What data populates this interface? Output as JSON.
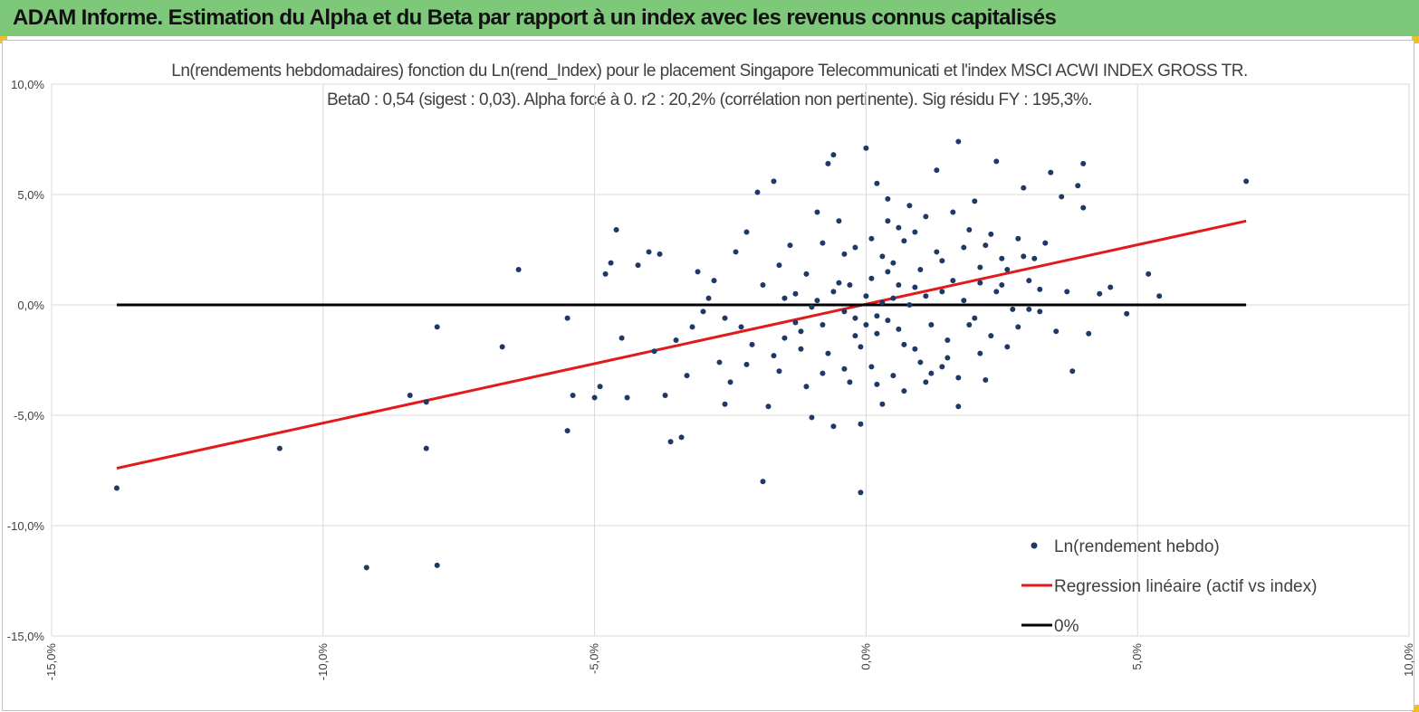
{
  "header": {
    "title": "ADAM Informe. Estimation du Alpha et du Beta par rapport à un index avec les revenus connus capitalisés"
  },
  "chart_data": {
    "type": "scatter",
    "title_line1": "Ln(rendements hebdomadaires) fonction du Ln(rend_Index)  pour le placement Singapore Telecommunicati  et l'index MSCI ACWI INDEX GROSS TR.",
    "title_line2": "Beta0 : 0,54 (sigest : 0,03).  Alpha forcé à 0. r2 : 20,2% (corrélation non pertinente). Sig résidu FY : 195,3%.",
    "xlim": [
      -15,
      10
    ],
    "ylim": [
      -15,
      10
    ],
    "x_ticks": [
      -15,
      -10,
      -5,
      0,
      5,
      10
    ],
    "y_ticks": [
      10,
      5,
      0,
      -5,
      -10,
      -15
    ],
    "x_tick_labels": [
      "-15,0%",
      "-10,0%",
      "-5,0%",
      "0,0%",
      "5,0%",
      "10,0%"
    ],
    "y_tick_labels": [
      "10,0%",
      "5,0%",
      "0,0%",
      "-5,0%",
      "-10,0%",
      "-15,0%"
    ],
    "grid": "vertical-and-horizontal",
    "legend_position": "bottom-right",
    "series": [
      {
        "name": "Ln(rendement hebdo)",
        "kind": "scatter",
        "color": "#1f3864",
        "points": [
          [
            -13.8,
            -8.3
          ],
          [
            -10.8,
            -6.5
          ],
          [
            -9.2,
            -11.9
          ],
          [
            -8.4,
            -4.1
          ],
          [
            -8.1,
            -4.4
          ],
          [
            -8.1,
            -6.5
          ],
          [
            -7.9,
            -11.8
          ],
          [
            -7.9,
            -1.0
          ],
          [
            -6.7,
            -1.9
          ],
          [
            -6.4,
            1.6
          ],
          [
            -5.5,
            -5.7
          ],
          [
            -5.5,
            -0.6
          ],
          [
            -5.4,
            -4.1
          ],
          [
            -5.0,
            -4.2
          ],
          [
            -4.9,
            -3.7
          ],
          [
            -4.8,
            1.4
          ],
          [
            -4.7,
            1.9
          ],
          [
            -4.6,
            3.4
          ],
          [
            -4.5,
            -1.5
          ],
          [
            -4.4,
            -4.2
          ],
          [
            -4.2,
            1.8
          ],
          [
            -4.0,
            2.4
          ],
          [
            -3.9,
            -2.1
          ],
          [
            -3.8,
            2.3
          ],
          [
            -3.7,
            -4.1
          ],
          [
            -3.6,
            -6.2
          ],
          [
            -3.4,
            -6.0
          ],
          [
            -3.3,
            -3.2
          ],
          [
            -3.1,
            1.5
          ],
          [
            -3.0,
            -0.3
          ],
          [
            -2.8,
            1.1
          ],
          [
            -2.7,
            -2.6
          ],
          [
            -2.6,
            -4.5
          ],
          [
            -2.4,
            2.4
          ],
          [
            -2.2,
            3.3
          ],
          [
            -2.1,
            -1.8
          ],
          [
            -2.0,
            5.1
          ],
          [
            -1.9,
            -8.0
          ],
          [
            -1.8,
            -4.6
          ],
          [
            -1.7,
            5.6
          ],
          [
            -1.6,
            -3.0
          ],
          [
            -1.5,
            -1.5
          ],
          [
            -1.4,
            2.7
          ],
          [
            -1.3,
            0.5
          ],
          [
            -1.2,
            -2.0
          ],
          [
            -1.1,
            1.4
          ],
          [
            -1.0,
            -5.1
          ],
          [
            -0.9,
            4.2
          ],
          [
            -0.8,
            -3.1
          ],
          [
            -0.7,
            6.4
          ],
          [
            -0.6,
            -5.5
          ],
          [
            -0.6,
            6.8
          ],
          [
            -0.5,
            3.8
          ],
          [
            -0.4,
            2.3
          ],
          [
            -0.3,
            -3.5
          ],
          [
            -0.2,
            -1.4
          ],
          [
            -0.1,
            -5.4
          ],
          [
            -0.1,
            -8.5
          ],
          [
            0.0,
            7.1
          ],
          [
            0.1,
            3.0
          ],
          [
            0.1,
            -2.8
          ],
          [
            0.2,
            -0.5
          ],
          [
            0.2,
            5.5
          ],
          [
            0.3,
            2.2
          ],
          [
            0.3,
            -4.5
          ],
          [
            0.4,
            4.8
          ],
          [
            0.4,
            1.5
          ],
          [
            0.5,
            -3.2
          ],
          [
            0.6,
            3.5
          ],
          [
            0.7,
            -1.8
          ],
          [
            0.8,
            4.5
          ],
          [
            0.9,
            0.8
          ],
          [
            1.0,
            -2.6
          ],
          [
            1.1,
            4.0
          ],
          [
            1.2,
            -3.1
          ],
          [
            1.3,
            6.1
          ],
          [
            1.4,
            2.0
          ],
          [
            1.5,
            -1.6
          ],
          [
            1.6,
            4.2
          ],
          [
            1.7,
            7.4
          ],
          [
            1.7,
            -4.6
          ],
          [
            1.8,
            2.6
          ],
          [
            1.9,
            -0.9
          ],
          [
            2.0,
            4.7
          ],
          [
            2.1,
            1.7
          ],
          [
            2.2,
            -3.4
          ],
          [
            2.3,
            3.2
          ],
          [
            2.4,
            6.5
          ],
          [
            2.5,
            0.9
          ],
          [
            2.6,
            -1.9
          ],
          [
            2.8,
            3.0
          ],
          [
            2.9,
            5.3
          ],
          [
            3.0,
            -0.2
          ],
          [
            3.1,
            2.1
          ],
          [
            3.2,
            0.7
          ],
          [
            3.4,
            6.0
          ],
          [
            3.5,
            -1.2
          ],
          [
            3.6,
            4.9
          ],
          [
            3.7,
            0.6
          ],
          [
            3.8,
            -3.0
          ],
          [
            3.9,
            5.4
          ],
          [
            4.0,
            6.4
          ],
          [
            4.0,
            4.4
          ],
          [
            4.1,
            -1.3
          ],
          [
            4.3,
            0.5
          ],
          [
            4.5,
            0.8
          ],
          [
            4.8,
            -0.4
          ],
          [
            5.2,
            1.4
          ],
          [
            5.4,
            0.4
          ],
          [
            7.0,
            5.6
          ],
          [
            -2.9,
            0.3
          ],
          [
            -2.3,
            -1.0
          ],
          [
            -1.9,
            0.9
          ],
          [
            -1.6,
            1.8
          ],
          [
            -1.3,
            -0.8
          ],
          [
            -1.1,
            -3.7
          ],
          [
            -0.9,
            0.2
          ],
          [
            -0.8,
            2.8
          ],
          [
            -0.7,
            -2.2
          ],
          [
            -0.5,
            1.0
          ],
          [
            -0.4,
            -0.3
          ],
          [
            -0.3,
            0.9
          ],
          [
            -0.2,
            2.6
          ],
          [
            -0.1,
            -1.9
          ],
          [
            0.0,
            0.4
          ],
          [
            0.0,
            -0.9
          ],
          [
            0.1,
            1.2
          ],
          [
            0.2,
            -1.3
          ],
          [
            0.3,
            0.1
          ],
          [
            0.4,
            -0.7
          ],
          [
            0.5,
            1.9
          ],
          [
            0.5,
            0.3
          ],
          [
            0.6,
            -1.1
          ],
          [
            0.7,
            2.9
          ],
          [
            0.8,
            0.0
          ],
          [
            0.9,
            -2.0
          ],
          [
            1.0,
            1.6
          ],
          [
            1.1,
            0.4
          ],
          [
            1.2,
            -0.9
          ],
          [
            1.3,
            2.4
          ],
          [
            1.4,
            0.6
          ],
          [
            1.5,
            -2.4
          ],
          [
            1.6,
            1.1
          ],
          [
            1.8,
            0.2
          ],
          [
            1.9,
            3.4
          ],
          [
            2.0,
            -0.6
          ],
          [
            2.1,
            1.0
          ],
          [
            2.2,
            2.7
          ],
          [
            2.3,
            -1.4
          ],
          [
            2.4,
            0.6
          ],
          [
            2.6,
            1.6
          ],
          [
            2.7,
            -0.2
          ],
          [
            2.9,
            2.2
          ],
          [
            3.0,
            1.1
          ],
          [
            3.2,
            -0.3
          ],
          [
            3.3,
            2.8
          ],
          [
            -1.0,
            -0.1
          ],
          [
            -0.6,
            0.6
          ],
          [
            -0.2,
            -0.6
          ],
          [
            0.6,
            0.9
          ],
          [
            -3.5,
            -1.6
          ],
          [
            -3.2,
            -1.0
          ],
          [
            -2.6,
            -0.6
          ],
          [
            -2.5,
            -3.5
          ],
          [
            -2.2,
            -2.7
          ],
          [
            -1.7,
            -2.3
          ],
          [
            -1.5,
            0.3
          ],
          [
            -1.2,
            -1.2
          ],
          [
            -0.8,
            -0.9
          ],
          [
            -0.4,
            -2.9
          ],
          [
            0.2,
            -3.6
          ],
          [
            0.4,
            3.8
          ],
          [
            0.7,
            -3.9
          ],
          [
            0.9,
            3.3
          ],
          [
            1.1,
            -3.5
          ],
          [
            1.4,
            -2.8
          ],
          [
            1.7,
            -3.3
          ],
          [
            2.1,
            -2.2
          ],
          [
            2.5,
            2.1
          ],
          [
            2.8,
            -1.0
          ]
        ]
      },
      {
        "name": "Regression linéaire (actif vs index)",
        "kind": "line",
        "color": "#e31a1c",
        "points": [
          [
            -13.8,
            -7.4
          ],
          [
            7.0,
            3.8
          ]
        ]
      },
      {
        "name": "0%",
        "kind": "line",
        "color": "#000000",
        "points": [
          [
            -13.8,
            0
          ],
          [
            7.0,
            0
          ]
        ]
      }
    ]
  },
  "colors": {
    "header_bg": "#7ec87a",
    "corner_marker": "#f0c020",
    "grid": "#d9d9d9",
    "axis_text": "#404040"
  }
}
